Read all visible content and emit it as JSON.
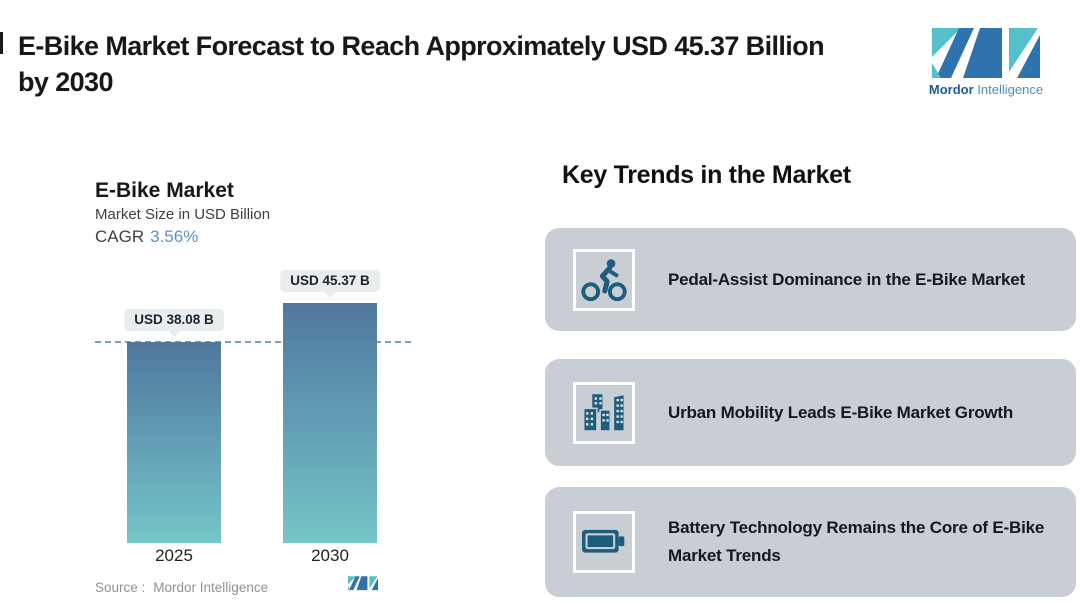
{
  "page": {
    "title_lines": [
      "E-Bike Market Forecast to Reach Approximately USD 45.37 Billion",
      "by 2030"
    ]
  },
  "brand": {
    "name_bold": "Mordor",
    "name_light": "Intelligence",
    "colors": {
      "blue": "#2e73ae",
      "teal": "#53c0cb"
    }
  },
  "chart_data": {
    "type": "bar",
    "title": "E-Bike Market",
    "subtitle": "Market Size in USD Billion",
    "cagr_label": "CAGR",
    "cagr_value": "3.56%",
    "categories": [
      "2025",
      "2030"
    ],
    "values": [
      38.08,
      45.37
    ],
    "value_labels": [
      "USD 38.08 B",
      "USD 45.37 B"
    ],
    "unit": "USD Billion",
    "reference_value": 38.08,
    "ylim": [
      0,
      45.37
    ],
    "grid": false,
    "legend": false,
    "source_label": "Source :",
    "source_value": "Mordor Intelligence",
    "colors": {
      "bar_top": "#50779d",
      "bar_bottom": "#75c6c7",
      "reference_line": "#7e9cc2",
      "label_box_bg": "#e9edee",
      "cagr_blue": "#6191c5"
    }
  },
  "trends": {
    "heading": "Key Trends in the Market",
    "card_bg": "#c9ced4",
    "icon_color": "#1e5c7c",
    "cards": [
      {
        "icon": "cyclist-icon",
        "text": "Pedal-Assist Dominance in the E-Bike Market"
      },
      {
        "icon": "buildings-icon",
        "text": "Urban Mobility Leads E-Bike Market Growth"
      },
      {
        "icon": "battery-icon",
        "text": "Battery Technology Remains the Core of E-Bike Market Trends"
      }
    ]
  }
}
